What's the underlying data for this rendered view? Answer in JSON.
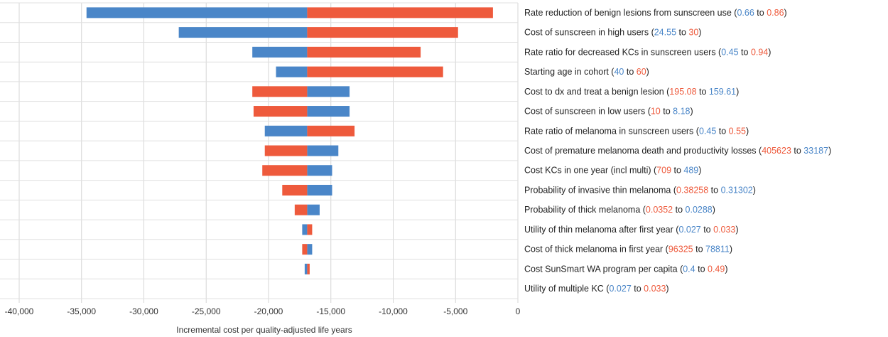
{
  "chart_data": {
    "type": "bar",
    "orientation": "horizontal",
    "title": "",
    "xlabel": "Incremental cost per quality-adjusted life years",
    "ylabel": "",
    "xlim": [
      -40000,
      0
    ],
    "x_ticks": [
      -40000,
      -35000,
      -30000,
      -25000,
      -20000,
      -15000,
      -10000,
      -5000,
      0
    ],
    "x_tick_labels": [
      "-40,000",
      "-35,000",
      "-30,000",
      "-25,000",
      "-20,000",
      "-15,000",
      "-10,000",
      "-5,000",
      "0"
    ],
    "base_value": -16900,
    "grid": "vertical",
    "legend": "none",
    "colors": {
      "low": "#4a86c8",
      "high": "#ee5a3c",
      "text": "#222222"
    },
    "rows": [
      {
        "name": "Rate reduction of benign lesions from sunscreen use",
        "low_value": "0.66",
        "high_value": "0.86",
        "low_end": -34600,
        "high_end": -2000
      },
      {
        "name": "Cost of sunscreen in high users",
        "low_value": "24.55",
        "high_value": "30",
        "low_end": -27200,
        "high_end": -4800
      },
      {
        "name": "Rate ratio for decreased KCs in sunscreen users",
        "low_value": "0.45",
        "high_value": "0.94",
        "low_end": -21300,
        "high_end": -7800
      },
      {
        "name": "Starting age in cohort",
        "low_value": "40",
        "high_value": "60",
        "low_end": -19400,
        "high_end": -6000
      },
      {
        "name": "Cost to dx and treat a benign lesion",
        "low_value": "159.61",
        "high_value": "195.08",
        "low_end": -13500,
        "high_end": -21300
      },
      {
        "name": "Cost of sunscreen in low users",
        "low_value": "8.18",
        "high_value": "10",
        "low_end": -13500,
        "high_end": -21200
      },
      {
        "name": "Rate ratio of melanoma in sunscreen users",
        "low_value": "0.45",
        "high_value": "0.55",
        "low_end": -20300,
        "high_end": -13100
      },
      {
        "name": "Cost of premature melanoma death and productivity losses",
        "low_value": "33187",
        "high_value": "405623",
        "low_end": -14400,
        "high_end": -20300
      },
      {
        "name": "Cost KCs in one year (incl multi)",
        "low_value": "489",
        "high_value": "709",
        "low_end": -14900,
        "high_end": -20500
      },
      {
        "name": "Probability of invasive thin melanoma",
        "low_value": "0.31302",
        "high_value": "0.38258",
        "low_end": -14900,
        "high_end": -18900
      },
      {
        "name": "Probability of thick melanoma",
        "low_value": "0.0288",
        "high_value": "0.0352",
        "low_end": -15900,
        "high_end": -17900
      },
      {
        "name": "Utility of thin melanoma after first year",
        "low_value": "0.027",
        "high_value": "0.033",
        "low_end": -17300,
        "high_end": -16500
      },
      {
        "name": "Cost of thick melanoma in first year",
        "low_value": "78811",
        "high_value": "96325",
        "low_end": -16500,
        "high_end": -17300
      },
      {
        "name": "Cost SunSmart WA program per capita",
        "low_value": "0.4",
        "high_value": "0.49",
        "low_end": -17100,
        "high_end": -16700
      },
      {
        "name": "Utility of multiple KC",
        "low_value": "0.027",
        "high_value": "0.033",
        "low_end": -16900,
        "high_end": -16900
      }
    ],
    "label_order": [
      [
        "low",
        "high"
      ],
      [
        "low",
        "high"
      ],
      [
        "low",
        "high"
      ],
      [
        "low",
        "high"
      ],
      [
        "high",
        "low"
      ],
      [
        "high",
        "low"
      ],
      [
        "low",
        "high"
      ],
      [
        "high",
        "low"
      ],
      [
        "high",
        "low"
      ],
      [
        "high",
        "low"
      ],
      [
        "high",
        "low"
      ],
      [
        "low",
        "high"
      ],
      [
        "high",
        "low"
      ],
      [
        "low",
        "high"
      ],
      [
        "low",
        "high"
      ]
    ]
  }
}
